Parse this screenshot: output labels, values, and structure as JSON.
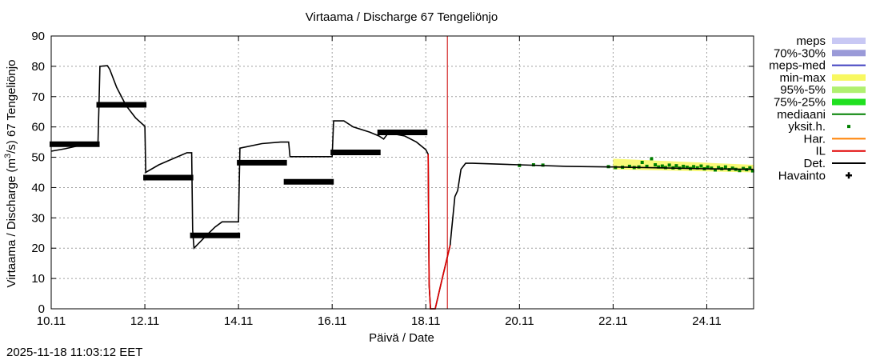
{
  "chart_data": {
    "type": "line",
    "title": "Virtaama / Discharge  67 Tengeliönjo",
    "xlabel": "Päivä / Date",
    "ylabel_main": "Virtaama / Discharge (m",
    "ylabel_sup": "3",
    "ylabel_tail": "/s)  67 Tengeliönjo",
    "ylim": [
      0,
      90
    ],
    "yticks": [
      0,
      10,
      20,
      30,
      40,
      50,
      60,
      70,
      80,
      90
    ],
    "xlim": [
      0,
      15
    ],
    "xticks": [
      {
        "x": 0,
        "label": "10.11"
      },
      {
        "x": 2,
        "label": "12.11"
      },
      {
        "x": 4,
        "label": "14.11"
      },
      {
        "x": 6,
        "label": "16.11"
      },
      {
        "x": 8,
        "label": "18.11"
      },
      {
        "x": 10,
        "label": "20.11"
      },
      {
        "x": 12,
        "label": "22.11"
      },
      {
        "x": 14,
        "label": "24.11"
      }
    ],
    "grid": true,
    "now_x": 8.46,
    "timestamp": "2025-11-18 11:03:12 EET",
    "legend": [
      {
        "label": "meps",
        "kind": "band",
        "color": "#c8c8f4"
      },
      {
        "label": "70%-30%",
        "kind": "band",
        "color": "#9a9ad8"
      },
      {
        "label": "meps-med",
        "kind": "line",
        "color": "#4040c0"
      },
      {
        "label": "min-max",
        "kind": "band",
        "color": "#f8f860"
      },
      {
        "label": "95%-5%",
        "kind": "band",
        "color": "#b0f070"
      },
      {
        "label": "75%-25%",
        "kind": "band",
        "color": "#20e020"
      },
      {
        "label": "mediaani",
        "kind": "line",
        "color": "#008000"
      },
      {
        "label": "yksit.h.",
        "kind": "dot",
        "color": "#008000"
      },
      {
        "label": "Har.",
        "kind": "line",
        "color": "#ff8000"
      },
      {
        "label": "IL",
        "kind": "line",
        "color": "#e00000"
      },
      {
        "label": "Det.",
        "kind": "line",
        "color": "#000000"
      },
      {
        "label": "Havainto",
        "kind": "plus",
        "color": "#000000"
      }
    ],
    "series": [
      {
        "name": "Det.",
        "color": "#000000",
        "points": [
          [
            0,
            52
          ],
          [
            0.3,
            52.8
          ],
          [
            0.65,
            54
          ],
          [
            0.98,
            54
          ],
          [
            1.0,
            55
          ],
          [
            1.02,
            67
          ],
          [
            1.04,
            80
          ],
          [
            1.2,
            80.2
          ],
          [
            1.25,
            79
          ],
          [
            1.4,
            73
          ],
          [
            1.6,
            67
          ],
          [
            1.8,
            63
          ],
          [
            2.0,
            60.2
          ],
          [
            2.02,
            45
          ],
          [
            2.3,
            47.5
          ],
          [
            2.6,
            49.5
          ],
          [
            2.9,
            51.5
          ],
          [
            3.0,
            51.5
          ],
          [
            3.02,
            26
          ],
          [
            3.05,
            20
          ],
          [
            3.3,
            24
          ],
          [
            3.5,
            27
          ],
          [
            3.65,
            28.7
          ],
          [
            4.0,
            28.7
          ],
          [
            4.03,
            53
          ],
          [
            4.5,
            54.5
          ],
          [
            4.9,
            55
          ],
          [
            5.07,
            55
          ],
          [
            5.1,
            50.2
          ],
          [
            6.0,
            50.2
          ],
          [
            6.03,
            62
          ],
          [
            6.25,
            62
          ],
          [
            6.45,
            60
          ],
          [
            6.8,
            58.3
          ],
          [
            7.0,
            57
          ],
          [
            7.1,
            56
          ],
          [
            7.2,
            58
          ],
          [
            7.55,
            57
          ],
          [
            7.8,
            55
          ],
          [
            8.0,
            52.5
          ],
          [
            8.05,
            51
          ],
          [
            8.07,
            8
          ],
          [
            8.1,
            0
          ],
          [
            8.2,
            0
          ],
          [
            8.35,
            10
          ],
          [
            8.52,
            21
          ],
          [
            8.55,
            26
          ],
          [
            8.62,
            37
          ],
          [
            8.68,
            39
          ],
          [
            8.75,
            46
          ],
          [
            8.85,
            48
          ],
          [
            9.0,
            48
          ],
          [
            10,
            47.5
          ],
          [
            11,
            47
          ],
          [
            12,
            46.8
          ],
          [
            13,
            46.5
          ],
          [
            14,
            46.2
          ],
          [
            15,
            46
          ]
        ]
      },
      {
        "name": "IL",
        "color": "#e00000",
        "points": [
          [
            8.05,
            51
          ],
          [
            8.07,
            8
          ],
          [
            8.1,
            0
          ],
          [
            8.2,
            0
          ],
          [
            8.35,
            10
          ],
          [
            8.52,
            21
          ]
        ]
      }
    ],
    "observations": [
      {
        "x0": 0,
        "x1": 1,
        "y": 54.3
      },
      {
        "x0": 1,
        "x1": 2,
        "y": 67.3
      },
      {
        "x0": 2,
        "x1": 3,
        "y": 43.3
      },
      {
        "x0": 3,
        "x1": 4,
        "y": 24.2
      },
      {
        "x0": 4,
        "x1": 5,
        "y": 48.2
      },
      {
        "x0": 5,
        "x1": 6,
        "y": 41.9
      },
      {
        "x0": 6,
        "x1": 7,
        "y": 51.6
      },
      {
        "x0": 7,
        "x1": 8,
        "y": 58.2
      }
    ],
    "ensemble_band": {
      "label": "min-max",
      "x0": 12.0,
      "x1": 15,
      "y_low_start": 46,
      "y_high_start": 49.5,
      "y_low_end": 45,
      "y_high_end": 47.5
    },
    "point_forecasts": [
      [
        10,
        47.3
      ],
      [
        10.3,
        47.5
      ],
      [
        10.5,
        47.4
      ],
      [
        11.9,
        46.9
      ],
      [
        12.05,
        46.6
      ],
      [
        12.2,
        46.7
      ],
      [
        12.35,
        47
      ],
      [
        12.45,
        46.6
      ],
      [
        12.55,
        46.8
      ],
      [
        12.62,
        48.3
      ],
      [
        12.72,
        47
      ],
      [
        12.82,
        49.5
      ],
      [
        12.9,
        47.5
      ],
      [
        12.97,
        46.8
      ],
      [
        13.05,
        47.1
      ],
      [
        13.12,
        46.6
      ],
      [
        13.2,
        47.4
      ],
      [
        13.28,
        46.5
      ],
      [
        13.35,
        47.2
      ],
      [
        13.42,
        46.4
      ],
      [
        13.5,
        47
      ],
      [
        13.58,
        46.7
      ],
      [
        13.65,
        46.3
      ],
      [
        13.72,
        46.9
      ],
      [
        13.8,
        46.5
      ],
      [
        13.88,
        47.1
      ],
      [
        13.95,
        46.2
      ],
      [
        14.02,
        46.8
      ],
      [
        14.1,
        46.4
      ],
      [
        14.18,
        45.8
      ],
      [
        14.25,
        46.6
      ],
      [
        14.32,
        46.2
      ],
      [
        14.4,
        46.8
      ],
      [
        14.48,
        45.9
      ],
      [
        14.55,
        46.4
      ],
      [
        14.62,
        46
      ],
      [
        14.7,
        45.6
      ],
      [
        14.78,
        46.3
      ],
      [
        14.85,
        45.9
      ],
      [
        14.92,
        46.5
      ],
      [
        14.98,
        45.5
      ]
    ]
  }
}
